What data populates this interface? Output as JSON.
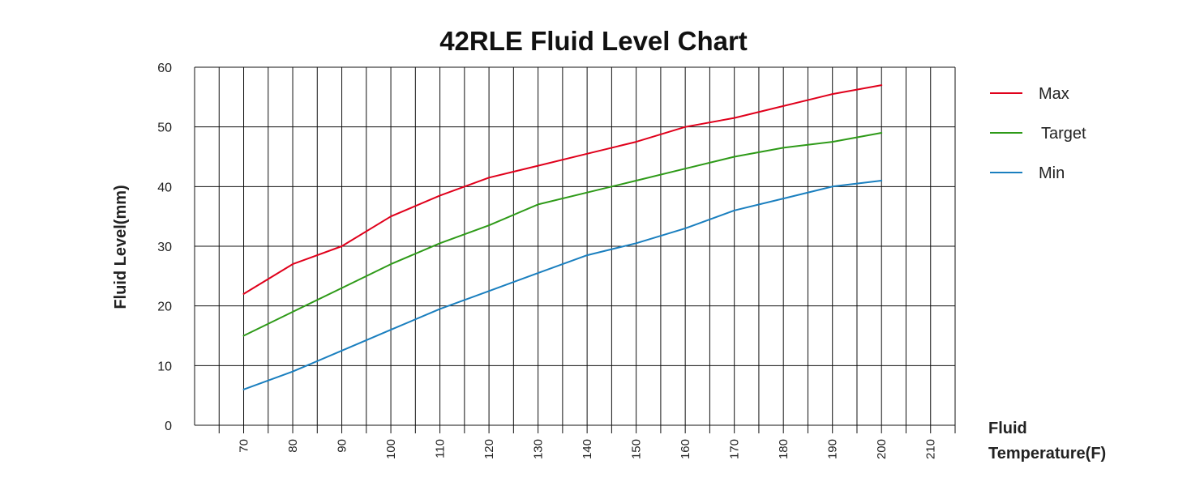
{
  "colors": {
    "max": "#e0001b",
    "target": "#2e9a18",
    "min": "#1a7fbf",
    "grid": "#111111"
  },
  "chart_data": {
    "type": "line",
    "title": "42RLE Fluid Level Chart",
    "ylabel": "Fluid Level(mm)",
    "xlabel_lines": [
      "Fluid",
      "Temperature(F)"
    ],
    "ylim": [
      0,
      60
    ],
    "yticks": [
      0,
      10,
      20,
      30,
      40,
      50,
      60
    ],
    "xticks": [
      70,
      80,
      90,
      100,
      110,
      120,
      130,
      140,
      150,
      160,
      170,
      180,
      190,
      200,
      210
    ],
    "xlim": [
      60,
      215
    ],
    "grid": true,
    "legend_position": "right",
    "x": [
      70,
      80,
      90,
      100,
      110,
      120,
      130,
      140,
      150,
      160,
      170,
      180,
      190,
      200
    ],
    "series": [
      {
        "name": "Max",
        "color_key": "max",
        "values": [
          22,
          27,
          30,
          35,
          38.5,
          41.5,
          43.5,
          45.5,
          47.5,
          50,
          51.5,
          53.5,
          55.5,
          57
        ]
      },
      {
        "name": "Target",
        "color_key": "target",
        "values": [
          15,
          19,
          23,
          27,
          30.5,
          33.5,
          37,
          39,
          41,
          43,
          45,
          46.5,
          47.5,
          49
        ]
      },
      {
        "name": "Min",
        "color_key": "min",
        "values": [
          6,
          9,
          12.5,
          16,
          19.5,
          22.5,
          25.5,
          28.5,
          30.5,
          33,
          36,
          38,
          40,
          41
        ]
      }
    ]
  }
}
